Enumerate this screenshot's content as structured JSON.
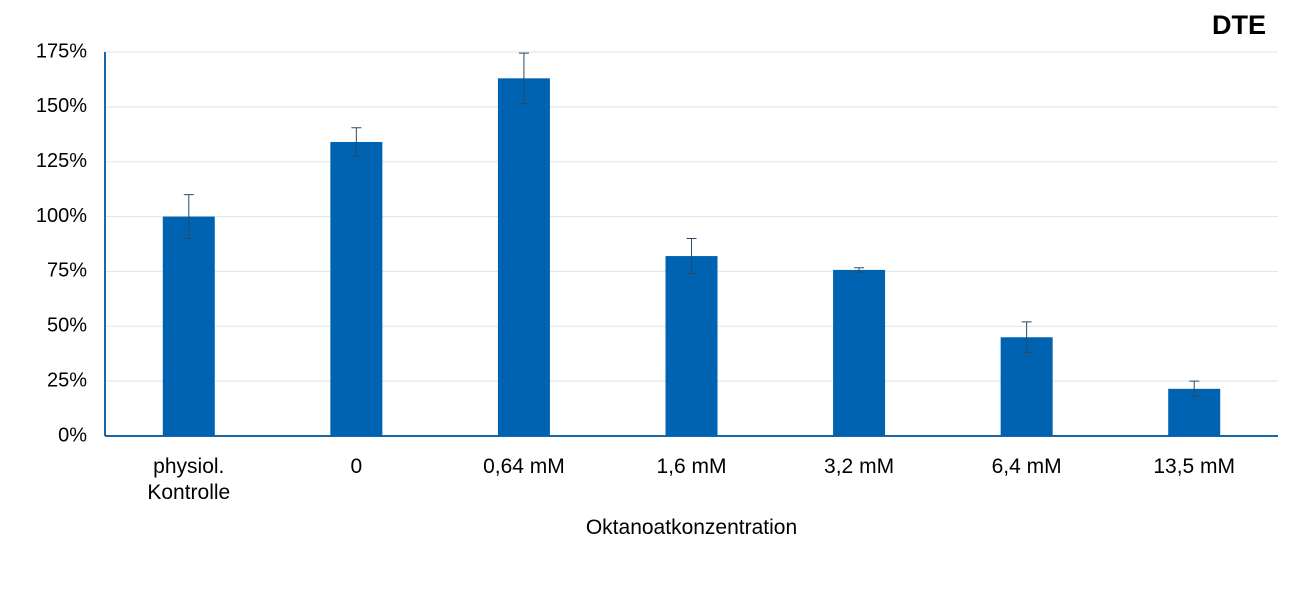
{
  "chart_data": {
    "type": "bar",
    "title": "DTE",
    "x_label": "Oktanoatkonzentration",
    "categories": [
      "physiol. Kontrolle",
      "0",
      "0,64 mM",
      "1,6 mM",
      "3,2 mM",
      "6,4 mM",
      "13,5 mM"
    ],
    "values": [
      100,
      134,
      163,
      82,
      75.7,
      45,
      21.5
    ],
    "errors": [
      10,
      6.5,
      11.5,
      8,
      1,
      7,
      3.5
    ],
    "color": "#0063b1",
    "ylim": [
      0,
      175
    ],
    "yticks": [
      {
        "value": 0,
        "label": "0%"
      },
      {
        "value": 25,
        "label": "25%"
      },
      {
        "value": 50,
        "label": "50%"
      },
      {
        "value": 75,
        "label": "75%"
      },
      {
        "value": 100,
        "label": "100%"
      },
      {
        "value": 125,
        "label": "125%"
      },
      {
        "value": 150,
        "label": "150%"
      },
      {
        "value": 175,
        "label": "175%"
      }
    ],
    "grid": true
  }
}
